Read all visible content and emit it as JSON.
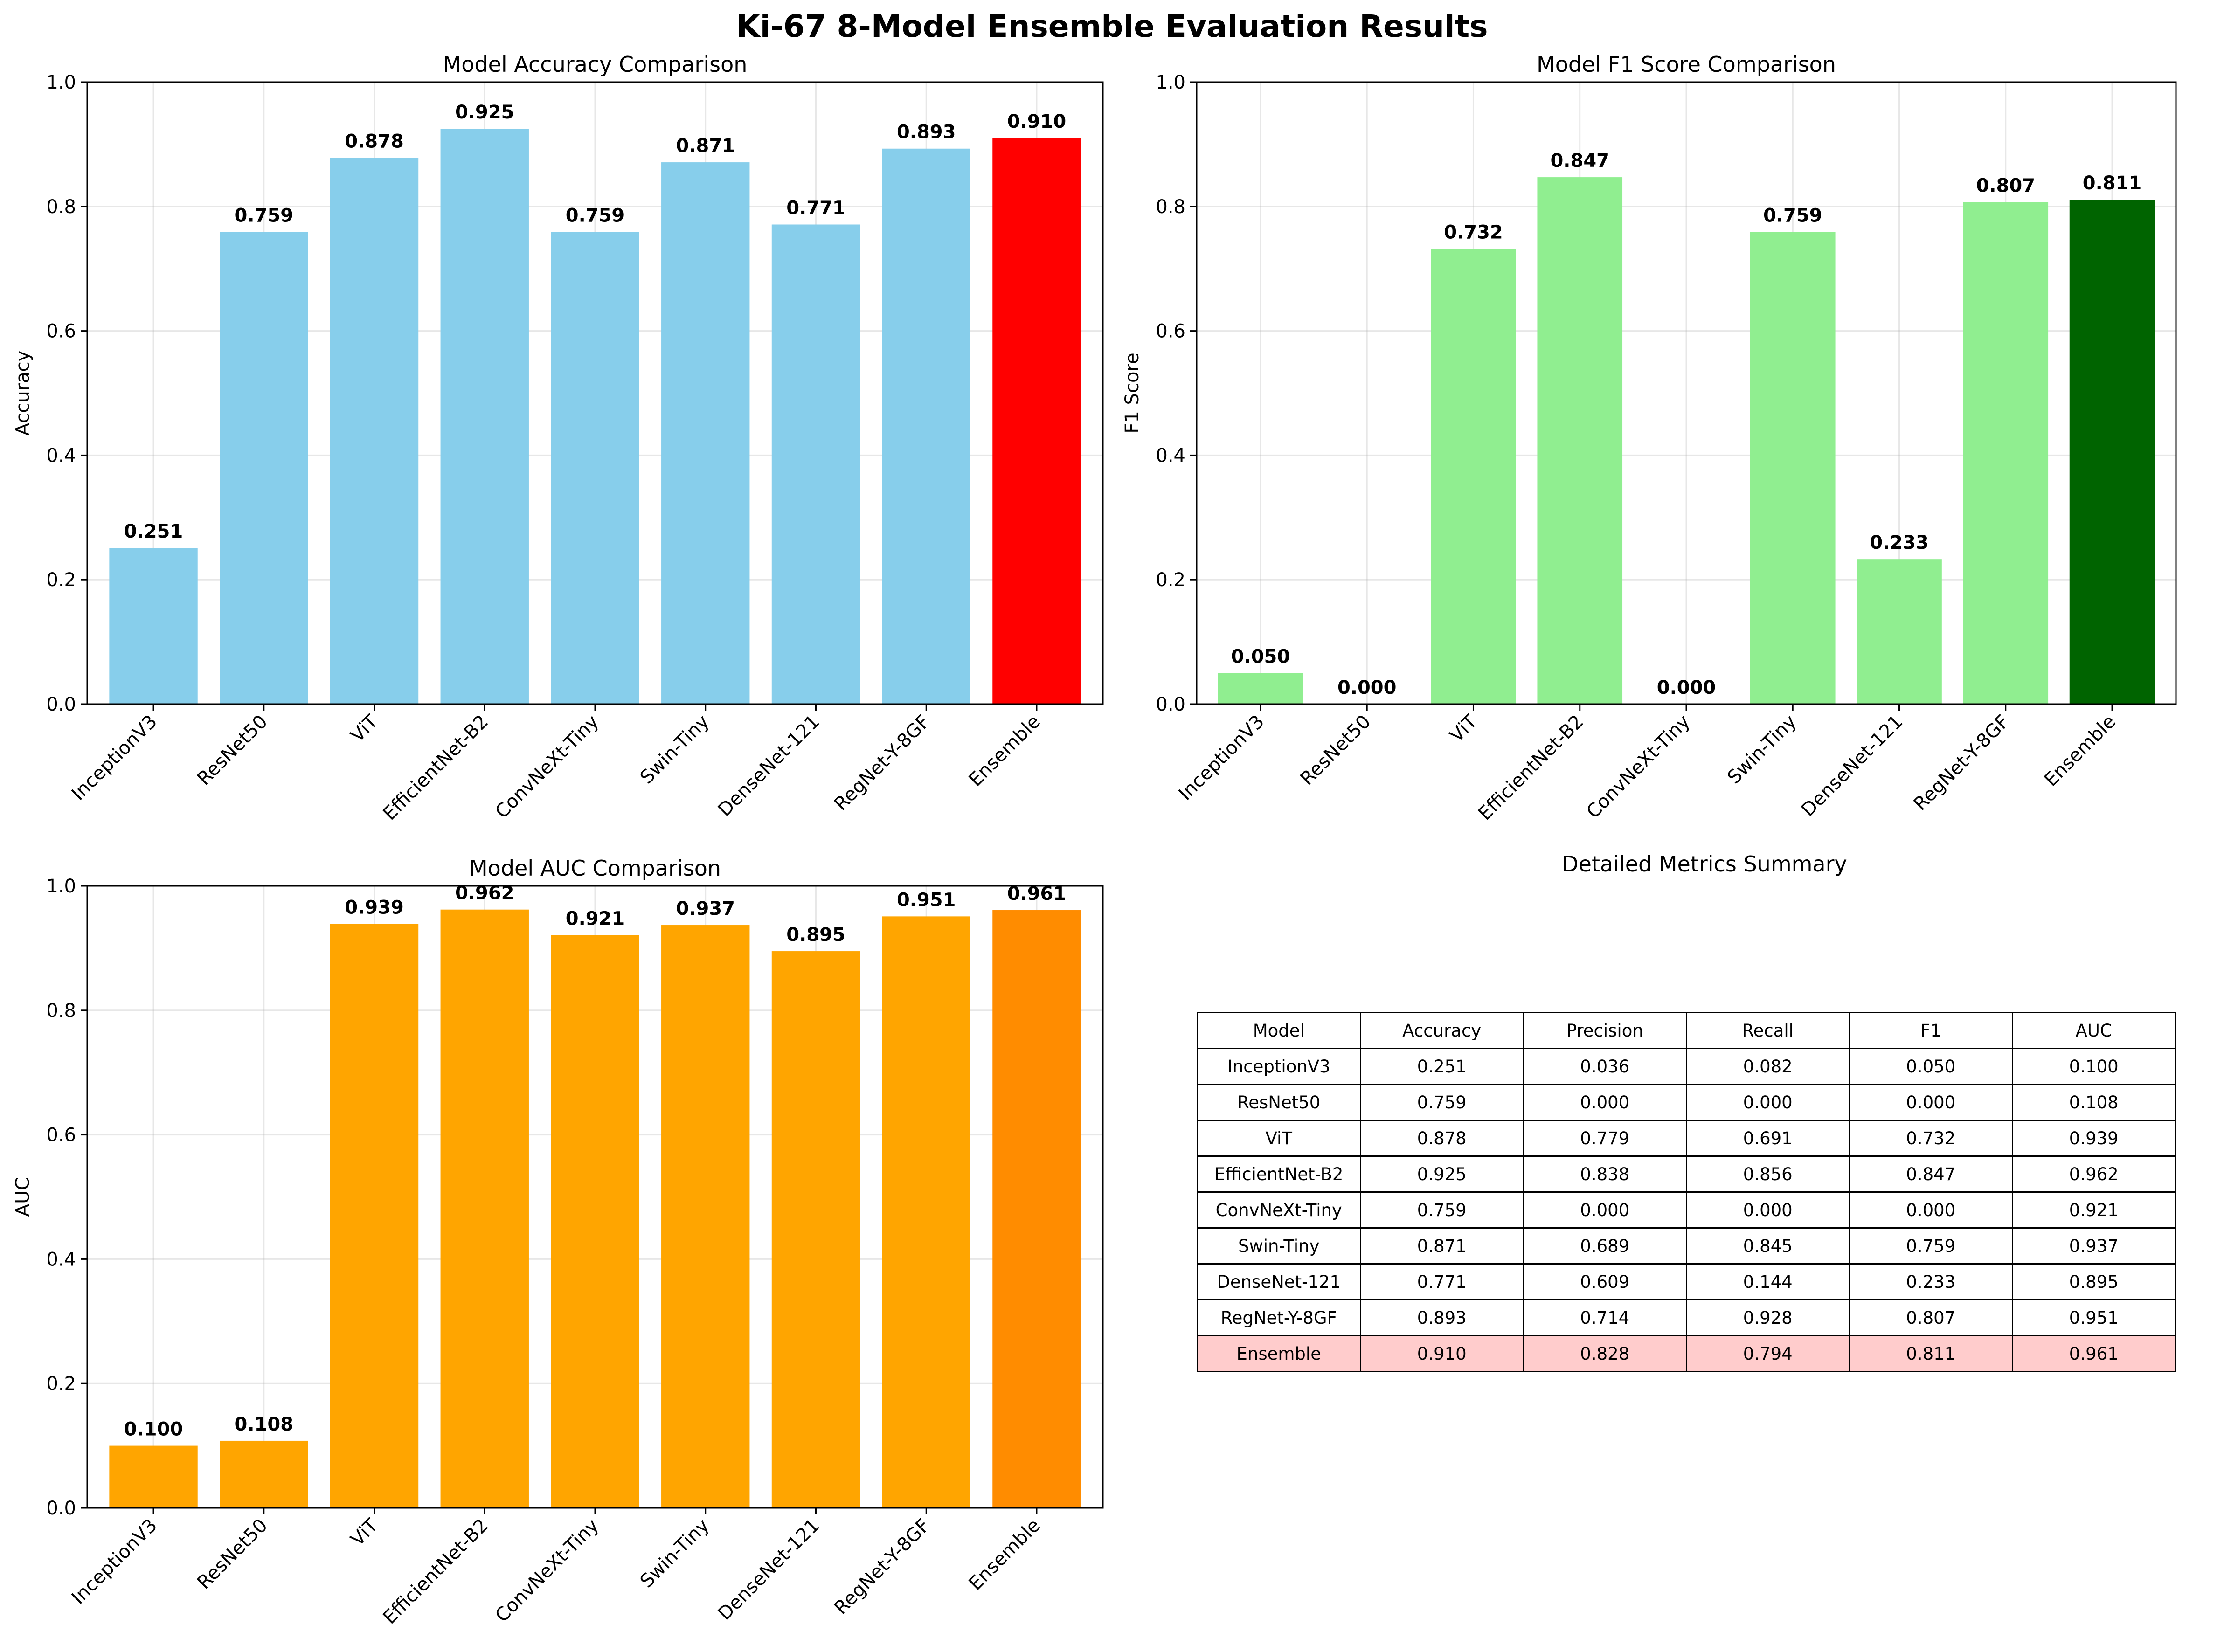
{
  "title": "Ki-67 8-Model Ensemble Evaluation Results",
  "chart_data": [
    {
      "id": "accuracy",
      "type": "bar",
      "title": "Model Accuracy Comparison",
      "xlabel": "",
      "ylabel": "Accuracy",
      "ylim": [
        0,
        1.0
      ],
      "yticks": [
        "0.0",
        "0.2",
        "0.4",
        "0.6",
        "0.8",
        "1.0"
      ],
      "grid": true,
      "categories": [
        "InceptionV3",
        "ResNet50",
        "ViT",
        "EfficientNet-B2",
        "ConvNeXt-Tiny",
        "Swin-Tiny",
        "DenseNet-121",
        "RegNet-Y-8GF",
        "Ensemble"
      ],
      "values": [
        0.251,
        0.759,
        0.878,
        0.925,
        0.759,
        0.871,
        0.771,
        0.893,
        0.91
      ],
      "labels": [
        "0.251",
        "0.759",
        "0.878",
        "0.925",
        "0.759",
        "0.871",
        "0.771",
        "0.893",
        "0.910"
      ],
      "bar_color": "#87ceeb",
      "highlight_color": "#ff0000"
    },
    {
      "id": "f1",
      "type": "bar",
      "title": "Model F1 Score Comparison",
      "xlabel": "",
      "ylabel": "F1 Score",
      "ylim": [
        0,
        1.0
      ],
      "yticks": [
        "0.0",
        "0.2",
        "0.4",
        "0.6",
        "0.8",
        "1.0"
      ],
      "grid": true,
      "categories": [
        "InceptionV3",
        "ResNet50",
        "ViT",
        "EfficientNet-B2",
        "ConvNeXt-Tiny",
        "Swin-Tiny",
        "DenseNet-121",
        "RegNet-Y-8GF",
        "Ensemble"
      ],
      "values": [
        0.05,
        0.0,
        0.732,
        0.847,
        0.0,
        0.759,
        0.233,
        0.807,
        0.811
      ],
      "labels": [
        "0.050",
        "0.000",
        "0.732",
        "0.847",
        "0.000",
        "0.759",
        "0.233",
        "0.807",
        "0.811"
      ],
      "bar_color": "#90ee90",
      "highlight_color": "#006400"
    },
    {
      "id": "auc",
      "type": "bar",
      "title": "Model AUC Comparison",
      "xlabel": "",
      "ylabel": "AUC",
      "ylim": [
        0,
        1.0
      ],
      "yticks": [
        "0.0",
        "0.2",
        "0.4",
        "0.6",
        "0.8",
        "1.0"
      ],
      "grid": true,
      "categories": [
        "InceptionV3",
        "ResNet50",
        "ViT",
        "EfficientNet-B2",
        "ConvNeXt-Tiny",
        "Swin-Tiny",
        "DenseNet-121",
        "RegNet-Y-8GF",
        "Ensemble"
      ],
      "values": [
        0.1,
        0.108,
        0.939,
        0.962,
        0.921,
        0.937,
        0.895,
        0.951,
        0.961
      ],
      "labels": [
        "0.100",
        "0.108",
        "0.939",
        "0.962",
        "0.921",
        "0.937",
        "0.895",
        "0.951",
        "0.961"
      ],
      "bar_color": "#ffa500",
      "highlight_color": "#ff8c00"
    },
    {
      "id": "summary",
      "type": "table",
      "title": "Detailed Metrics Summary",
      "columns": [
        "Model",
        "Accuracy",
        "Precision",
        "Recall",
        "F1",
        "AUC"
      ],
      "rows": [
        [
          "InceptionV3",
          "0.251",
          "0.036",
          "0.082",
          "0.050",
          "0.100"
        ],
        [
          "ResNet50",
          "0.759",
          "0.000",
          "0.000",
          "0.000",
          "0.108"
        ],
        [
          "ViT",
          "0.878",
          "0.779",
          "0.691",
          "0.732",
          "0.939"
        ],
        [
          "EfficientNet-B2",
          "0.925",
          "0.838",
          "0.856",
          "0.847",
          "0.962"
        ],
        [
          "ConvNeXt-Tiny",
          "0.759",
          "0.000",
          "0.000",
          "0.000",
          "0.921"
        ],
        [
          "Swin-Tiny",
          "0.871",
          "0.689",
          "0.845",
          "0.759",
          "0.937"
        ],
        [
          "DenseNet-121",
          "0.771",
          "0.609",
          "0.144",
          "0.233",
          "0.895"
        ],
        [
          "RegNet-Y-8GF",
          "0.893",
          "0.714",
          "0.928",
          "0.807",
          "0.951"
        ],
        [
          "Ensemble",
          "0.910",
          "0.828",
          "0.794",
          "0.811",
          "0.961"
        ]
      ],
      "highlight_row": "Ensemble",
      "highlight_color": "#ffcccc"
    }
  ]
}
